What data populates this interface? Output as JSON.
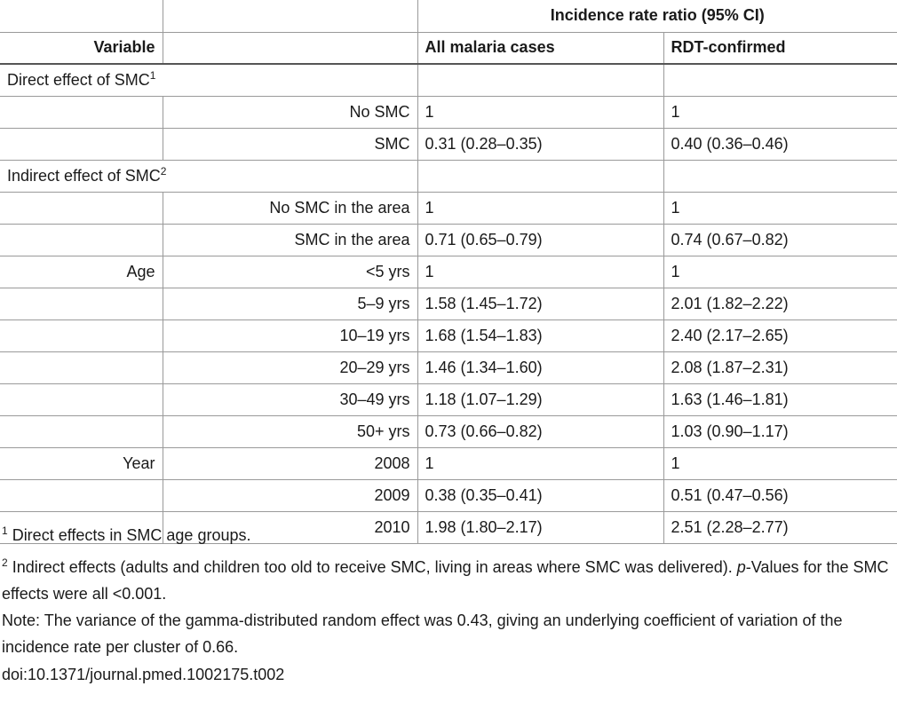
{
  "header": {
    "group_label": "Incidence rate ratio (95% CI)",
    "variable_label": "Variable",
    "col_all": "All malaria cases",
    "col_rdt": "RDT-confirmed"
  },
  "sections": {
    "direct_label": "Direct effect of SMC",
    "direct_sup": "1",
    "indirect_label": "Indirect effect of SMC",
    "indirect_sup": "2"
  },
  "rows": {
    "no_smc": {
      "group": "",
      "level": "No SMC",
      "all": "1",
      "rdt": "1"
    },
    "smc": {
      "group": "",
      "level": "SMC",
      "all": "0.31 (0.28–0.35)",
      "rdt": "0.40 (0.36–0.46)"
    },
    "no_smc_area": {
      "group": "",
      "level": "No SMC in the area",
      "all": "1",
      "rdt": "1"
    },
    "smc_area": {
      "group": "",
      "level": "SMC in the area",
      "all": "0.71 (0.65–0.79)",
      "rdt": "0.74 (0.67–0.82)"
    },
    "age_lt5": {
      "group": "Age",
      "level": "<5 yrs",
      "all": "1",
      "rdt": "1"
    },
    "age_5_9": {
      "group": "",
      "level": "5–9 yrs",
      "all": "1.58 (1.45–1.72)",
      "rdt": "2.01 (1.82–2.22)"
    },
    "age_10_19": {
      "group": "",
      "level": "10–19 yrs",
      "all": "1.68 (1.54–1.83)",
      "rdt": "2.40 (2.17–2.65)"
    },
    "age_20_29": {
      "group": "",
      "level": "20–29 yrs",
      "all": "1.46 (1.34–1.60)",
      "rdt": "2.08 (1.87–2.31)"
    },
    "age_30_49": {
      "group": "",
      "level": "30–49 yrs",
      "all": "1.18 (1.07–1.29)",
      "rdt": "1.63 (1.46–1.81)"
    },
    "age_50": {
      "group": "",
      "level": "50+ yrs",
      "all": "0.73 (0.66–0.82)",
      "rdt": "1.03 (0.90–1.17)"
    },
    "year_2008": {
      "group": "Year",
      "level": "2008",
      "all": "1",
      "rdt": "1"
    },
    "year_2009": {
      "group": "",
      "level": "2009",
      "all": "0.38 (0.35–0.41)",
      "rdt": "0.51 (0.47–0.56)"
    },
    "year_2010": {
      "group": "",
      "level": "2010",
      "all": "1.98 (1.80–2.17)",
      "rdt": "2.51 (2.28–2.77)"
    }
  },
  "footnotes": {
    "fn1_sup": "1",
    "fn1_text": " Direct effects in SMC age groups.",
    "fn2_sup": "2",
    "fn2_text_a": " Indirect effects (adults and children too old to receive SMC, living in areas where SMC was delivered). ",
    "fn2_p": "p",
    "fn2_text_b": "-Values for the SMC effects were all <0.001.",
    "note": "Note: The variance of the gamma-distributed random effect was 0.43, giving an underlying coefficient of variation of the incidence rate per cluster of 0.66."
  },
  "doi": "doi:10.1371/journal.pmed.1002175.t002"
}
